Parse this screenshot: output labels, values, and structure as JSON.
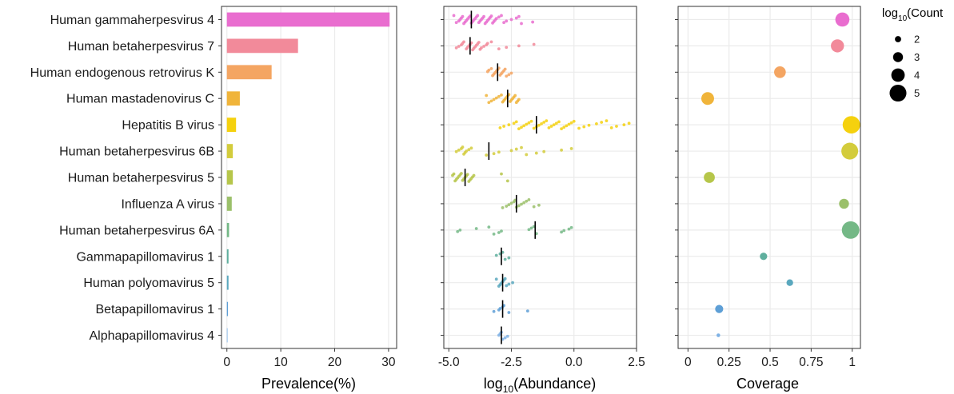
{
  "chart_data": [
    {
      "type": "bar",
      "panel": "prevalence",
      "orientation": "horizontal",
      "categories": [
        "Human gammaherpesvirus 4",
        "Human betaherpesvirus 7",
        "Human endogenous retrovirus K",
        "Human mastadenovirus C",
        "Hepatitis B virus",
        "Human betaherpesvirus 6B",
        "Human betaherpesvirus 5",
        "Influenza A virus",
        "Human betaherpesvirus 6A",
        "Gammapapillomavirus 1",
        "Human polyomavirus 5",
        "Betapapillomavirus 1",
        "Alphapapillomavirus 4"
      ],
      "colors": [
        "#E96DCF",
        "#F28A9A",
        "#F4A562",
        "#F0B43A",
        "#F5D10E",
        "#D3CC3C",
        "#B6C64A",
        "#9BC06A",
        "#74B886",
        "#5FAF9E",
        "#5AA8BE",
        "#5E9FD6",
        "#7FB2E5"
      ],
      "values": [
        30.2,
        13.2,
        8.3,
        2.4,
        1.7,
        1.1,
        1.1,
        0.9,
        0.4,
        0.3,
        0.3,
        0.2,
        0.1
      ],
      "xlabel": "Prevalence(%)",
      "xlim": [
        -1,
        31.5
      ],
      "xticks": [
        0,
        10,
        20,
        30
      ],
      "xtick_labels": [
        "0",
        "10",
        "20",
        "30"
      ]
    },
    {
      "type": "scatter",
      "panel": "abundance",
      "xlabel_parts": [
        "log",
        "10",
        "(Abundance)"
      ],
      "xlim": [
        -5.2,
        2.5
      ],
      "xticks": [
        -5.0,
        -2.5,
        0.0,
        2.5
      ],
      "xtick_labels": [
        "-5.0",
        "-2.5",
        "0.0",
        "2.5"
      ],
      "medians": [
        -4.1,
        -4.15,
        -3.05,
        -2.65,
        -1.5,
        -3.4,
        -4.35,
        -2.3,
        -1.55,
        -2.9,
        -2.85,
        -2.85,
        -2.9
      ],
      "series": [
        {
          "name": "Human gammaherpesvirus 4",
          "x": [
            -4.8,
            -4.7,
            -4.6,
            -4.55,
            -4.5,
            -4.45,
            -4.4,
            -4.35,
            -4.3,
            -4.25,
            -4.2,
            -4.15,
            -4.1,
            -4.05,
            -4.0,
            -3.95,
            -3.9,
            -3.85,
            -3.8,
            -3.75,
            -3.7,
            -3.65,
            -3.6,
            -3.55,
            -3.5,
            -3.45,
            -3.4,
            -3.35,
            -3.3,
            -3.25,
            -3.2,
            -3.15,
            -3.1,
            -3.0,
            -2.9,
            -2.8,
            -2.7,
            -2.5,
            -2.3,
            -2.2,
            -2.1,
            -1.65
          ]
        },
        {
          "name": "Human betaherpesvirus 7",
          "x": [
            -4.7,
            -4.6,
            -4.5,
            -4.45,
            -4.4,
            -4.3,
            -4.25,
            -4.2,
            -4.15,
            -4.1,
            -4.05,
            -4.0,
            -3.95,
            -3.9,
            -3.85,
            -3.8,
            -3.75,
            -3.7,
            -3.6,
            -3.5,
            -3.45,
            -3.3,
            -3.0,
            -2.7,
            -2.2,
            -1.6
          ]
        },
        {
          "name": "Human endogenous retrovirus K",
          "x": [
            -3.45,
            -3.4,
            -3.3,
            -3.25,
            -3.2,
            -3.15,
            -3.1,
            -3.05,
            -3.0,
            -2.95,
            -2.9,
            -2.85,
            -2.8,
            -2.75,
            -2.7,
            -2.6,
            -2.5
          ]
        },
        {
          "name": "Human mastadenovirus C",
          "x": [
            -3.5,
            -3.4,
            -3.3,
            -3.2,
            -3.1,
            -3.0,
            -2.9,
            -2.85,
            -2.8,
            -2.75,
            -2.7,
            -2.65,
            -2.6,
            -2.55,
            -2.5,
            -2.45,
            -2.4,
            -2.35,
            -2.3,
            -2.25,
            -2.2
          ]
        },
        {
          "name": "Hepatitis B virus",
          "x": [
            -2.95,
            -2.8,
            -2.6,
            -2.4,
            -2.3,
            -2.2,
            -2.1,
            -2.0,
            -1.9,
            -1.8,
            -1.7,
            -1.6,
            -1.5,
            -1.4,
            -1.3,
            -1.2,
            -1.1,
            -1.0,
            -0.9,
            -0.8,
            -0.7,
            -0.6,
            -0.5,
            -0.4,
            -0.3,
            -0.2,
            -0.1,
            0.0,
            0.2,
            0.4,
            0.6,
            0.9,
            1.1,
            1.3,
            1.5,
            1.7,
            2.0,
            2.2
          ]
        },
        {
          "name": "Human betaherpesvirus 6B",
          "x": [
            -4.7,
            -4.6,
            -4.5,
            -4.45,
            -4.4,
            -4.35,
            -4.3,
            -4.2,
            -4.1,
            -3.5,
            -3.2,
            -3.0,
            -2.5,
            -2.3,
            -2.1,
            -1.9,
            -1.5,
            -1.2,
            -0.5,
            -0.1
          ]
        },
        {
          "name": "Human betaherpesvirus 5",
          "x": [
            -4.85,
            -4.8,
            -4.75,
            -4.7,
            -4.65,
            -4.6,
            -4.55,
            -4.5,
            -4.45,
            -4.4,
            -4.35,
            -4.3,
            -4.25,
            -4.2,
            -4.15,
            -4.1,
            -4.05,
            -4.0,
            -2.9,
            -2.65
          ]
        },
        {
          "name": "Influenza A virus",
          "x": [
            -2.85,
            -2.7,
            -2.6,
            -2.5,
            -2.4,
            -2.35,
            -2.3,
            -2.2,
            -2.1,
            -2.0,
            -1.9,
            -1.8,
            -1.6,
            -1.4
          ]
        },
        {
          "name": "Human betaherpesvirus 6A",
          "x": [
            -4.65,
            -4.55,
            -3.9,
            -3.4,
            -3.2,
            -3.0,
            -2.9,
            -1.8,
            -1.7,
            -1.6,
            -1.5,
            -0.5,
            -0.4,
            -0.2,
            -0.1
          ]
        },
        {
          "name": "Gammapapillomavirus 1",
          "x": [
            -3.1,
            -2.95,
            -2.85,
            -2.75,
            -2.6
          ]
        },
        {
          "name": "Human polyomavirus 5",
          "x": [
            -3.1,
            -3.0,
            -2.95,
            -2.9,
            -2.85,
            -2.8,
            -2.75,
            -2.7,
            -2.6,
            -2.45
          ]
        },
        {
          "name": "Betapapillomavirus 1",
          "x": [
            -3.2,
            -3.0,
            -2.95,
            -2.85,
            -2.8,
            -2.6,
            -1.85
          ]
        },
        {
          "name": "Alphapapillomavirus 4",
          "x": [
            -3.0,
            -2.95,
            -2.9,
            -2.85,
            -2.75,
            -2.65
          ]
        }
      ]
    },
    {
      "type": "scatter",
      "panel": "coverage",
      "xlabel": "Coverage",
      "xlim": [
        -0.06,
        1.05
      ],
      "xticks": [
        0,
        0.25,
        0.5,
        0.75,
        1
      ],
      "xtick_labels": [
        "0",
        "0.25",
        "0.5",
        "0.75",
        "1"
      ],
      "coverage": [
        0.94,
        0.91,
        0.56,
        0.12,
        0.995,
        0.985,
        0.13,
        0.95,
        0.99,
        0.46,
        0.62,
        0.19,
        0.185
      ],
      "log10_count": [
        4.2,
        3.9,
        3.5,
        3.8,
        5.2,
        5.0,
        3.3,
        3.0,
        5.2,
        2.3,
        2.1,
        2.5,
        1.1
      ],
      "legend": {
        "title_parts": [
          "log",
          "10",
          "(Count"
        ],
        "levels": [
          2,
          3,
          4,
          5
        ],
        "labels": [
          "2",
          "3",
          "4",
          "5"
        ],
        "placement": "right"
      }
    }
  ]
}
